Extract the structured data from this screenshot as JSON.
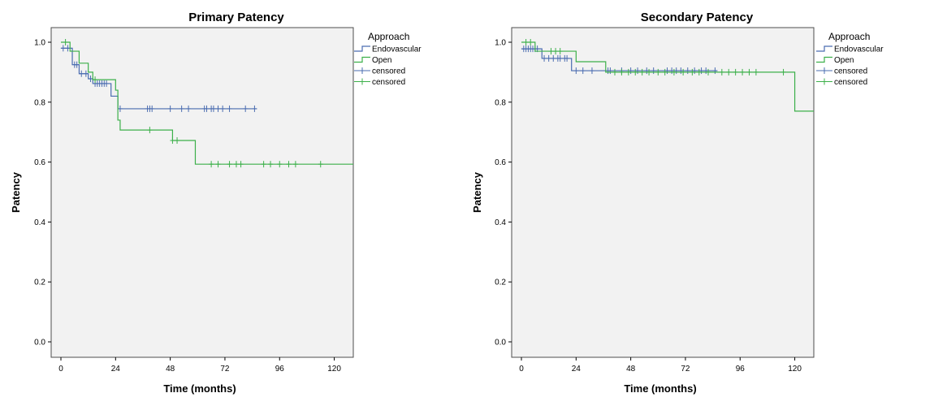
{
  "chart_data": [
    {
      "type": "line",
      "title": "Primary Patency",
      "xlabel": "Time (months)",
      "ylabel": "Patency",
      "xlim": [
        0,
        130
      ],
      "ylim": [
        0,
        1
      ],
      "xticks": [
        0,
        24,
        48,
        72,
        96,
        120
      ],
      "yticks": [
        0.0,
        0.2,
        0.4,
        0.6,
        0.8,
        1.0
      ],
      "xtick_labels": [
        "0",
        "24",
        "48",
        "72",
        "96",
        "120"
      ],
      "ytick_labels": [
        "0.0",
        "0.2",
        "0.4",
        "0.6",
        "0.8",
        "1.0"
      ],
      "legend": {
        "title": "Approach",
        "position": "right",
        "entries": [
          {
            "label": "Endovascular",
            "kind": "line",
            "series": "Endovascular"
          },
          {
            "label": "Open",
            "kind": "line",
            "series": "Open"
          },
          {
            "label": "censored",
            "kind": "cross",
            "series": "Endovascular"
          },
          {
            "label": "censored",
            "kind": "cross",
            "series": "Open"
          }
        ]
      },
      "series": [
        {
          "name": "Endovascular",
          "color": "#4a6cb0",
          "steps": [
            [
              0,
              0.98
            ],
            [
              5,
              0.925
            ],
            [
              8,
              0.895
            ],
            [
              12,
              0.878
            ],
            [
              14,
              0.862
            ],
            [
              22,
              0.82
            ],
            [
              25,
              0.778
            ],
            [
              86,
              0.778
            ]
          ],
          "censored": [
            [
              1,
              0.98
            ],
            [
              3,
              0.98
            ],
            [
              6,
              0.925
            ],
            [
              7,
              0.925
            ],
            [
              9,
              0.895
            ],
            [
              11,
              0.895
            ],
            [
              13,
              0.878
            ],
            [
              15,
              0.862
            ],
            [
              16,
              0.862
            ],
            [
              17,
              0.862
            ],
            [
              18,
              0.862
            ],
            [
              19,
              0.862
            ],
            [
              20,
              0.862
            ],
            [
              26,
              0.778
            ],
            [
              38,
              0.778
            ],
            [
              39,
              0.778
            ],
            [
              40,
              0.778
            ],
            [
              48,
              0.778
            ],
            [
              53,
              0.778
            ],
            [
              56,
              0.778
            ],
            [
              63,
              0.778
            ],
            [
              64,
              0.778
            ],
            [
              66,
              0.778
            ],
            [
              67,
              0.778
            ],
            [
              69,
              0.778
            ],
            [
              71,
              0.778
            ],
            [
              74,
              0.778
            ],
            [
              81,
              0.778
            ],
            [
              85,
              0.778
            ]
          ]
        },
        {
          "name": "Open",
          "color": "#3cb04a",
          "steps": [
            [
              0,
              1.0
            ],
            [
              4,
              0.97
            ],
            [
              8,
              0.93
            ],
            [
              12,
              0.9
            ],
            [
              14,
              0.875
            ],
            [
              24,
              0.84
            ],
            [
              25,
              0.74
            ],
            [
              26,
              0.707
            ],
            [
              49,
              0.672
            ],
            [
              59,
              0.593
            ],
            [
              130,
              0.593
            ]
          ],
          "censored": [
            [
              2,
              1.0
            ],
            [
              15,
              0.875
            ],
            [
              39,
              0.707
            ],
            [
              49,
              0.672
            ],
            [
              51,
              0.672
            ],
            [
              66,
              0.593
            ],
            [
              69,
              0.593
            ],
            [
              74,
              0.593
            ],
            [
              77,
              0.593
            ],
            [
              79,
              0.593
            ],
            [
              89,
              0.593
            ],
            [
              92,
              0.593
            ],
            [
              96,
              0.593
            ],
            [
              100,
              0.593
            ],
            [
              103,
              0.593
            ],
            [
              114,
              0.593
            ]
          ]
        }
      ]
    },
    {
      "type": "line",
      "title": "Secondary Patency",
      "xlabel": "Time (months)",
      "ylabel": "Patency",
      "xlim": [
        0,
        130
      ],
      "ylim": [
        0,
        1
      ],
      "xticks": [
        0,
        24,
        48,
        72,
        96,
        120
      ],
      "yticks": [
        0.0,
        0.2,
        0.4,
        0.6,
        0.8,
        1.0
      ],
      "xtick_labels": [
        "0",
        "24",
        "48",
        "72",
        "96",
        "120"
      ],
      "ytick_labels": [
        "0.0",
        "0.2",
        "0.4",
        "0.6",
        "0.8",
        "1.0"
      ],
      "legend": {
        "title": "Approach",
        "position": "right",
        "entries": [
          {
            "label": "Endovascular",
            "kind": "line",
            "series": "Endovascular"
          },
          {
            "label": "Open",
            "kind": "line",
            "series": "Open"
          },
          {
            "label": "censored",
            "kind": "cross",
            "series": "Endovascular"
          },
          {
            "label": "censored",
            "kind": "cross",
            "series": "Open"
          }
        ]
      },
      "series": [
        {
          "name": "Endovascular",
          "color": "#4a6cb0",
          "steps": [
            [
              0,
              0.978
            ],
            [
              9,
              0.946
            ],
            [
              22,
              0.905
            ],
            [
              86,
              0.905
            ]
          ],
          "censored": [
            [
              1,
              0.978
            ],
            [
              2,
              0.978
            ],
            [
              3,
              0.978
            ],
            [
              4,
              0.978
            ],
            [
              5,
              0.978
            ],
            [
              6,
              0.978
            ],
            [
              7,
              0.978
            ],
            [
              10,
              0.946
            ],
            [
              12,
              0.946
            ],
            [
              14,
              0.946
            ],
            [
              16,
              0.946
            ],
            [
              17,
              0.946
            ],
            [
              19,
              0.946
            ],
            [
              20,
              0.946
            ],
            [
              24,
              0.905
            ],
            [
              27,
              0.905
            ],
            [
              31,
              0.905
            ],
            [
              38,
              0.905
            ],
            [
              39,
              0.905
            ],
            [
              44,
              0.905
            ],
            [
              48,
              0.905
            ],
            [
              51,
              0.905
            ],
            [
              55,
              0.905
            ],
            [
              58,
              0.905
            ],
            [
              64,
              0.905
            ],
            [
              66,
              0.905
            ],
            [
              68,
              0.905
            ],
            [
              70,
              0.905
            ],
            [
              73,
              0.905
            ],
            [
              76,
              0.905
            ],
            [
              79,
              0.905
            ],
            [
              81,
              0.905
            ],
            [
              85,
              0.905
            ]
          ]
        },
        {
          "name": "Open",
          "color": "#3cb04a",
          "steps": [
            [
              0,
              1.0
            ],
            [
              6,
              0.97
            ],
            [
              24,
              0.935
            ],
            [
              37,
              0.9
            ],
            [
              120,
              0.9
            ],
            [
              120,
              0.77
            ],
            [
              130,
              0.77
            ]
          ],
          "censored": [
            [
              2,
              1.0
            ],
            [
              4,
              1.0
            ],
            [
              13,
              0.97
            ],
            [
              15,
              0.97
            ],
            [
              17,
              0.97
            ],
            [
              41,
              0.9
            ],
            [
              44,
              0.9
            ],
            [
              47,
              0.9
            ],
            [
              50,
              0.9
            ],
            [
              53,
              0.9
            ],
            [
              56,
              0.9
            ],
            [
              60,
              0.9
            ],
            [
              63,
              0.9
            ],
            [
              67,
              0.9
            ],
            [
              71,
              0.9
            ],
            [
              75,
              0.9
            ],
            [
              78,
              0.9
            ],
            [
              82,
              0.9
            ],
            [
              88,
              0.9
            ],
            [
              91,
              0.9
            ],
            [
              94,
              0.9
            ],
            [
              97,
              0.9
            ],
            [
              100,
              0.9
            ],
            [
              103,
              0.9
            ],
            [
              115,
              0.9
            ]
          ]
        }
      ]
    }
  ]
}
